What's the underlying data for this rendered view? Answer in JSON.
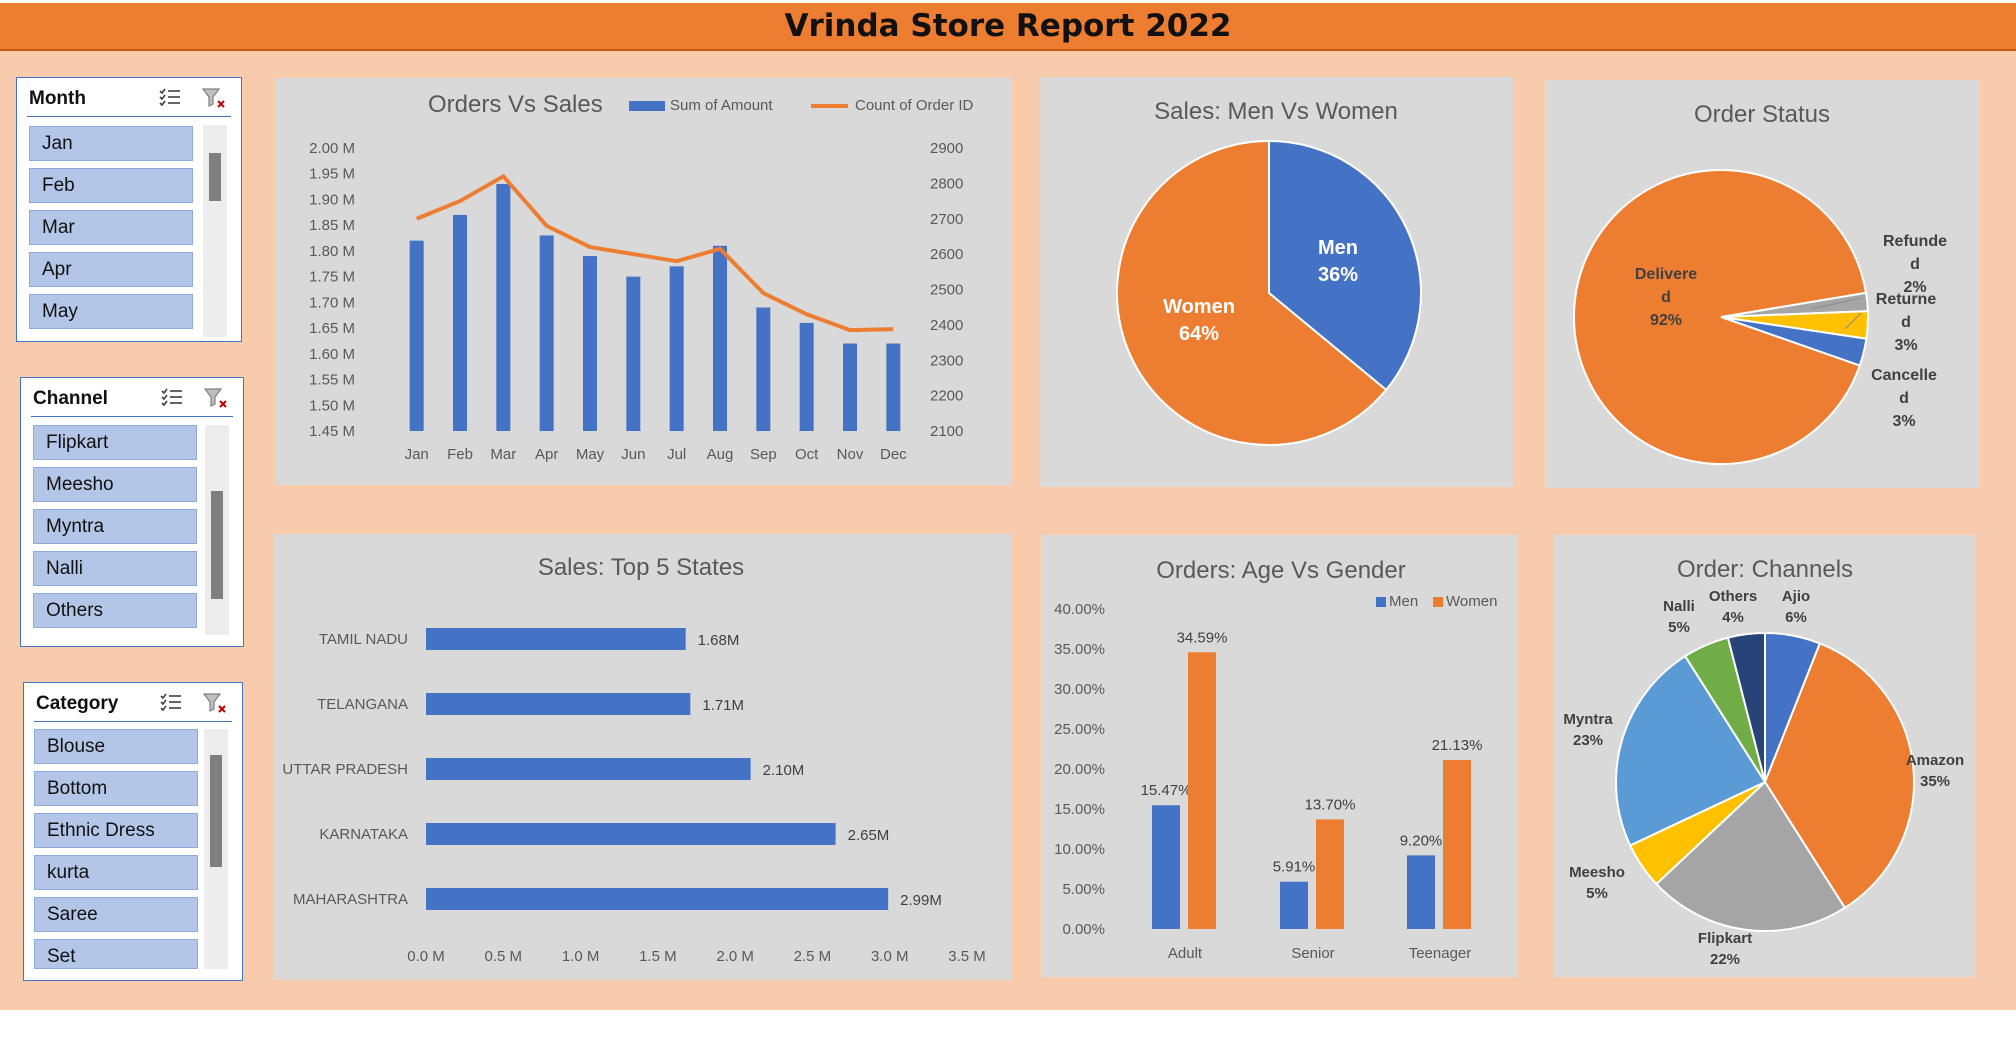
{
  "report_title": "Vrinda Store Report 2022",
  "colors": {
    "blue": "#4472c4",
    "orange": "#ed7d31",
    "gray": "#a5a5a5",
    "yellow": "#ffc000",
    "lightblue": "#5b9bd5",
    "green": "#70ad47",
    "navy": "#264478"
  },
  "slicers": {
    "month": {
      "title": "Month",
      "items": [
        "Jan",
        "Feb",
        "Mar",
        "Apr",
        "May"
      ]
    },
    "channel": {
      "title": "Channel",
      "items": [
        "Flipkart",
        "Meesho",
        "Myntra",
        "Nalli",
        "Others"
      ]
    },
    "category": {
      "title": "Category",
      "items": [
        "Blouse",
        "Bottom",
        "Ethnic Dress",
        "kurta",
        "Saree",
        "Set"
      ]
    }
  },
  "chart_data": [
    {
      "id": "orders-vs-sales",
      "type": "bar",
      "title": "Orders Vs Sales",
      "categories": [
        "Jan",
        "Feb",
        "Mar",
        "Apr",
        "May",
        "Jun",
        "Jul",
        "Aug",
        "Sep",
        "Oct",
        "Nov",
        "Dec"
      ],
      "series": [
        {
          "name": "Sum of Amount",
          "type": "bar",
          "axis": "left",
          "values": [
            1.82,
            1.87,
            1.93,
            1.83,
            1.79,
            1.75,
            1.77,
            1.81,
            1.69,
            1.66,
            1.62,
            1.62
          ]
        },
        {
          "name": "Count of Order ID",
          "type": "line",
          "axis": "right",
          "values": [
            2700,
            2750,
            2820,
            2680,
            2620,
            2600,
            2580,
            2615,
            2490,
            2430,
            2385,
            2388
          ]
        }
      ],
      "y_left": {
        "min": 1.45,
        "max": 2.0,
        "step": 0.05,
        "tick_labels": [
          "1.45 M",
          "1.50 M",
          "1.55 M",
          "1.60 M",
          "1.65 M",
          "1.70 M",
          "1.75 M",
          "1.80 M",
          "1.85 M",
          "1.90 M",
          "1.95 M",
          "2.00 M"
        ]
      },
      "y_right": {
        "min": 2100,
        "max": 2900,
        "step": 100,
        "tick_labels": [
          "2100",
          "2200",
          "2300",
          "2400",
          "2500",
          "2600",
          "2700",
          "2800",
          "2900"
        ]
      },
      "legend": "top-right"
    },
    {
      "id": "men-vs-women",
      "type": "pie",
      "title": "Sales: Men Vs Women",
      "slices": [
        {
          "name": "Men",
          "value": 36,
          "label": "36%"
        },
        {
          "name": "Women",
          "value": 64,
          "label": "64%"
        }
      ]
    },
    {
      "id": "order-status",
      "type": "pie",
      "title": "Order Status",
      "slices": [
        {
          "name_lines": [
            "Refunde",
            "d"
          ],
          "value": 2,
          "label": "2%"
        },
        {
          "name_lines": [
            "Returne",
            "d"
          ],
          "value": 3,
          "label": "3%"
        },
        {
          "name_lines": [
            "Cancelle",
            "d"
          ],
          "value": 3,
          "label": "3%"
        },
        {
          "name_lines": [
            "Delivere",
            "d"
          ],
          "value": 92,
          "label": "92%"
        }
      ]
    },
    {
      "id": "top-5-states",
      "type": "bar",
      "orientation": "horizontal",
      "title": "Sales: Top 5 States",
      "categories": [
        "TAMIL NADU",
        "TELANGANA",
        "UTTAR PRADESH",
        "KARNATAKA",
        "MAHARASHTRA"
      ],
      "values": [
        1.68,
        1.71,
        2.1,
        2.65,
        2.99
      ],
      "value_labels": [
        "1.68M",
        "1.71M",
        "2.10M",
        "2.65M",
        "2.99M"
      ],
      "xlim": [
        0,
        3.5
      ],
      "tick_labels": [
        "0.0 M",
        "0.5 M",
        "1.0 M",
        "1.5 M",
        "2.0 M",
        "2.5 M",
        "3.0 M",
        "3.5 M"
      ]
    },
    {
      "id": "age-vs-gender",
      "type": "bar",
      "title": "Orders: Age Vs Gender",
      "categories": [
        "Adult",
        "Senior",
        "Teenager"
      ],
      "series": [
        {
          "name": "Men",
          "values": [
            15.47,
            5.91,
            9.2
          ],
          "labels": [
            "15.47%",
            "5.91%",
            "9.20%"
          ]
        },
        {
          "name": "Women",
          "values": [
            34.59,
            13.7,
            21.13
          ],
          "labels": [
            "34.59%",
            "13.70%",
            "21.13%"
          ]
        }
      ],
      "ylim": [
        0,
        40
      ],
      "tick_labels": [
        "0.00%",
        "5.00%",
        "10.00%",
        "15.00%",
        "20.00%",
        "25.00%",
        "30.00%",
        "35.00%",
        "40.00%"
      ],
      "legend": "top-right"
    },
    {
      "id": "order-channels",
      "type": "pie",
      "title": "Order: Channels",
      "slices": [
        {
          "name": "Ajio",
          "value": 6,
          "label": "6%"
        },
        {
          "name": "Amazon",
          "value": 35,
          "label": "35%"
        },
        {
          "name": "Flipkart",
          "value": 22,
          "label": "22%"
        },
        {
          "name": "Meesho",
          "value": 5,
          "label": "5%"
        },
        {
          "name": "Myntra",
          "value": 23,
          "label": "23%"
        },
        {
          "name": "Nalli",
          "value": 5,
          "label": "5%"
        },
        {
          "name": "Others",
          "value": 4,
          "label": "4%"
        }
      ]
    }
  ]
}
